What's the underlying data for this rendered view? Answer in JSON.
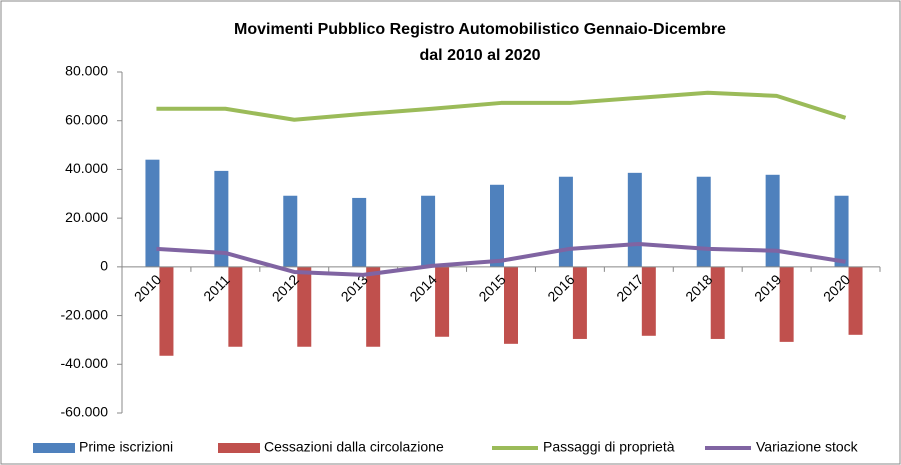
{
  "chart_data": {
    "type": "bar",
    "title": [
      "Movimenti Pubblico Registro Automobilistico Gennaio-Dicembre",
      "dal 2010 al 2020"
    ],
    "categories": [
      "2010",
      "2011",
      "2012",
      "2013",
      "2014",
      "2015",
      "2016",
      "2017",
      "2018",
      "2019",
      "2020"
    ],
    "series": [
      {
        "name": "Prime iscrizioni",
        "color": "#4f81bd",
        "kind": "bar",
        "values": [
          44000,
          39400,
          29200,
          28300,
          29200,
          33700,
          37000,
          38600,
          37000,
          37800,
          29200
        ]
      },
      {
        "name": "Cessazioni dalla circolazione",
        "color": "#c0504d",
        "kind": "bar",
        "values": [
          -36500,
          -32800,
          -32800,
          -32800,
          -28700,
          -31600,
          -29600,
          -28300,
          -29600,
          -30800,
          -27900
        ]
      },
      {
        "name": "Passaggi di proprietà",
        "color": "#9bbb59",
        "kind": "line",
        "values": [
          64900,
          64900,
          60400,
          62800,
          64900,
          67300,
          67300,
          69400,
          71500,
          70200,
          61200
        ]
      },
      {
        "name": "Variazione stock",
        "color": "#8064a2",
        "kind": "line",
        "values": [
          7400,
          5700,
          -2100,
          -3300,
          400,
          2500,
          7400,
          9400,
          7400,
          6600,
          2100
        ]
      }
    ],
    "ylim": [
      -60000,
      80000
    ],
    "yticks": [
      {
        "value": -60000,
        "label": "-60.000"
      },
      {
        "value": -40000,
        "label": "-40.000"
      },
      {
        "value": -20000,
        "label": "-20.000"
      },
      0,
      {
        "value": 20000,
        "label": "20.000"
      },
      {
        "value": 40000,
        "label": "40.000"
      },
      {
        "value": 60000,
        "label": "60.000"
      },
      {
        "value": 80000,
        "label": "80.000"
      }
    ],
    "grid": false,
    "legend": "bottom"
  }
}
